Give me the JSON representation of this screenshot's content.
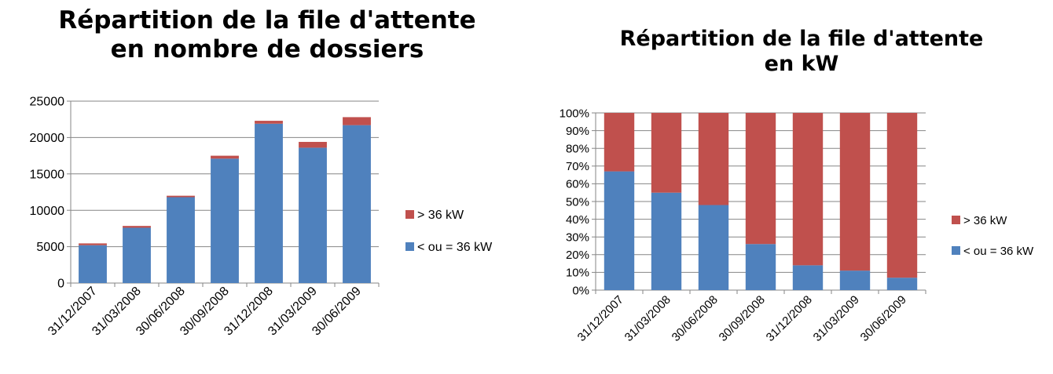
{
  "chart_data": [
    {
      "type": "bar",
      "stacked": true,
      "title": [
        "Répartition de la file d'attente",
        "en  nombre de dossiers"
      ],
      "categories": [
        "31/12/2007",
        "31/03/2008",
        "30/06/2008",
        "30/09/2008",
        "31/12/2008",
        "31/03/2009",
        "30/06/2009"
      ],
      "series": [
        {
          "name": "< ou = 36 kW",
          "color": "#4f81bd",
          "values": [
            5200,
            7600,
            11800,
            17100,
            21900,
            18600,
            21700
          ]
        },
        {
          "name": "> 36 kW",
          "color": "#c0504d",
          "values": [
            250,
            250,
            200,
            400,
            400,
            800,
            1100
          ]
        }
      ],
      "yticks": [
        "0",
        "5000",
        "10000",
        "15000",
        "20000",
        "25000"
      ],
      "ylim": [
        0,
        25000
      ],
      "grid": true,
      "legend": "right"
    },
    {
      "type": "bar",
      "stacked": true,
      "percent": true,
      "title": [
        "Répartition de la file d'attente",
        "en  kW"
      ],
      "categories": [
        "31/12/2007",
        "31/03/2008",
        "30/06/2008",
        "30/09/2008",
        "31/12/2008",
        "31/03/2009",
        "30/06/2009"
      ],
      "series": [
        {
          "name": "< ou = 36 kW",
          "color": "#4f81bd",
          "values": [
            67,
            55,
            48,
            26,
            14,
            11,
            7
          ]
        },
        {
          "name": "> 36 kW",
          "color": "#c0504d",
          "values": [
            33,
            45,
            52,
            74,
            86,
            89,
            93
          ]
        }
      ],
      "yticks": [
        "0%",
        "10%",
        "20%",
        "30%",
        "40%",
        "50%",
        "60%",
        "70%",
        "80%",
        "90%",
        "100%"
      ],
      "ylim": [
        0,
        100
      ],
      "grid": true,
      "legend": "right"
    }
  ]
}
